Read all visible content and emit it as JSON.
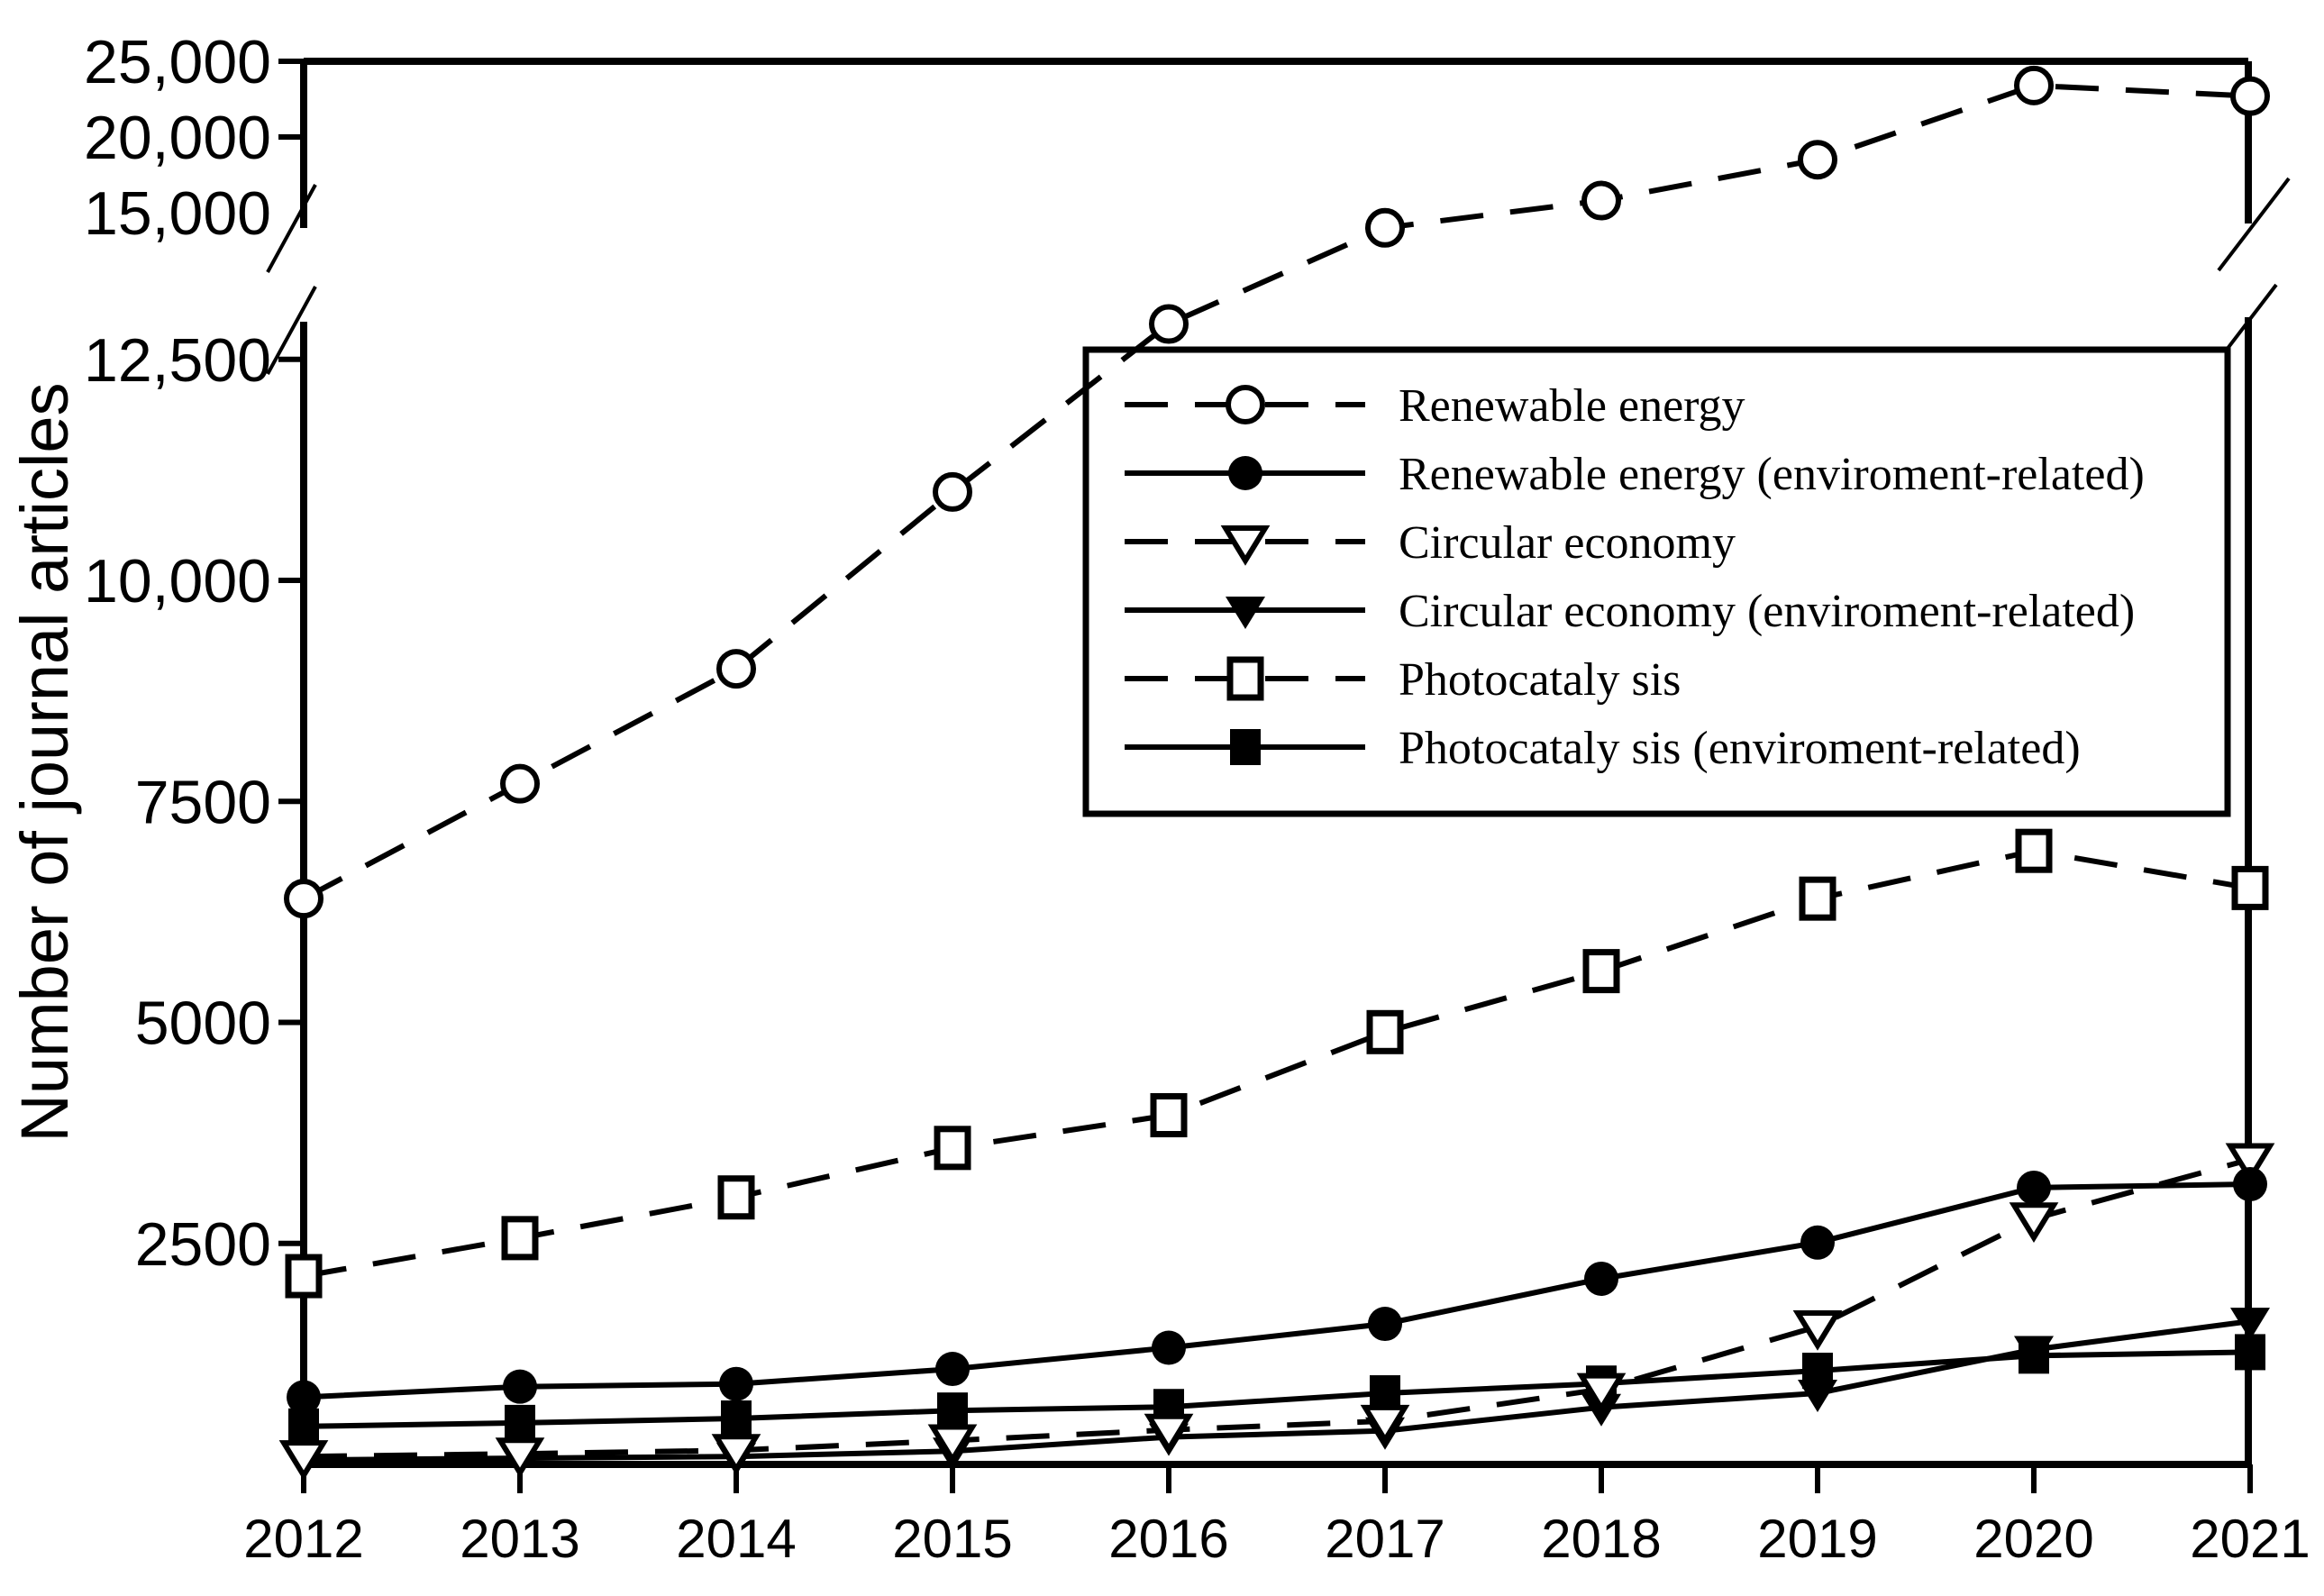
{
  "figure": {
    "background_color": "#ffffff",
    "foreground_color": "#000000",
    "y_axis_title": "Number of journal articles"
  },
  "chart_data": {
    "type": "line",
    "title": "",
    "xlabel": "",
    "ylabel": "Number of journal articles",
    "x": [
      2012,
      2013,
      2014,
      2015,
      2016,
      2017,
      2018,
      2019,
      2020,
      2021
    ],
    "x_tick_labels": [
      "2012",
      "2013",
      "2014",
      "2015",
      "2016",
      "2017",
      "2018",
      "2019",
      "2020",
      "2021"
    ],
    "grid": false,
    "axis_break": {
      "enabled": true,
      "lower_range": [
        0,
        13000
      ],
      "upper_range": [
        13500,
        25000
      ]
    },
    "y_ticks_upper": [
      {
        "value": 25000,
        "label": "25,000"
      },
      {
        "value": 20000,
        "label": "20,000"
      },
      {
        "value": 15000,
        "label": "15,000"
      }
    ],
    "y_ticks_lower": [
      {
        "value": 12500,
        "label": "12,500"
      },
      {
        "value": 10000,
        "label": "10,000"
      },
      {
        "value": 7500,
        "label": "7500"
      },
      {
        "value": 5000,
        "label": "5000"
      },
      {
        "value": 2500,
        "label": "2500"
      }
    ],
    "legend_position": "upper-right-inside-box",
    "series": [
      {
        "name": "Renewable energy",
        "line": "dashed",
        "marker": "circle-open",
        "values": [
          6400,
          7700,
          9000,
          11000,
          12900,
          14000,
          15800,
          18500,
          23400,
          22700
        ]
      },
      {
        "name": "Renewable energy (enviroment-related)",
        "line": "solid",
        "marker": "circle-filled",
        "values": [
          760,
          880,
          910,
          1080,
          1320,
          1590,
          2100,
          2510,
          3130,
          3170
        ]
      },
      {
        "name": "Circular economy",
        "line": "dashed",
        "marker": "triangle-down-open",
        "values": [
          90,
          120,
          160,
          270,
          390,
          490,
          850,
          1560,
          2780,
          3450
        ]
      },
      {
        "name": "Circular economy (enviroment-related)",
        "line": "solid",
        "marker": "triangle-down-filled",
        "values": [
          50,
          70,
          90,
          150,
          310,
          380,
          645,
          805,
          1300,
          1620
        ]
      },
      {
        "name": "Photocataly sis",
        "line": "dashed",
        "marker": "square-open",
        "values": [
          2130,
          2560,
          3020,
          3580,
          3950,
          4890,
          5580,
          6400,
          6940,
          6520
        ]
      },
      {
        "name": "Photocataly sis (enviroment-related)",
        "line": "solid",
        "marker": "square-filled",
        "values": [
          430,
          470,
          520,
          610,
          650,
          805,
          915,
          1060,
          1230,
          1270
        ]
      }
    ]
  }
}
